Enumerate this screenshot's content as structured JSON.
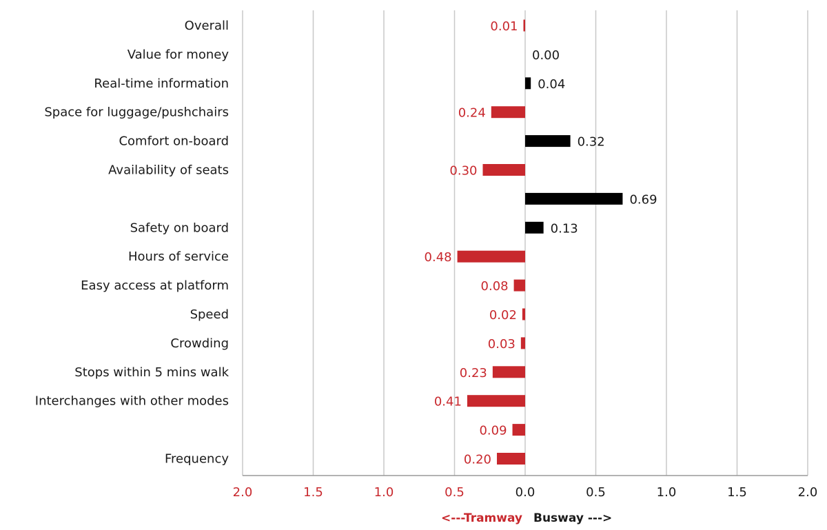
{
  "chart_data": {
    "type": "bar",
    "orientation": "horizontal",
    "categories": [
      "Overall",
      "Value for money",
      "Real-time information",
      "Space for luggage/pushchairs",
      "Comfort on-board",
      "Availability of seats",
      "",
      "Safety on board",
      "Hours of service",
      "Easy access at platform",
      "Speed",
      "Crowding",
      "Stops within 5 mins walk",
      "Interchanges with other modes",
      "",
      "Frequency"
    ],
    "values": [
      -0.01,
      0.0,
      0.04,
      -0.24,
      0.32,
      -0.3,
      0.69,
      0.13,
      -0.48,
      -0.08,
      -0.02,
      -0.03,
      -0.23,
      -0.41,
      -0.09,
      -0.2
    ],
    "value_labels": [
      "0.01",
      "0.00",
      "0.04",
      "0.24",
      "0.32",
      "0.30",
      "0.69",
      "0.13",
      "0.48",
      "0.08",
      "0.02",
      "0.03",
      "0.23",
      "0.41",
      "0.09",
      "0.20"
    ],
    "xlim": [
      -2.0,
      2.0
    ],
    "x_ticks": [
      -2.0,
      -1.5,
      -1.0,
      -0.5,
      0.0,
      0.5,
      1.0,
      1.5,
      2.0
    ],
    "x_tick_labels": [
      "2.0",
      "1.5",
      "1.0",
      "0.5",
      "0.0",
      "0.5",
      "1.0",
      "1.5",
      "2.0"
    ],
    "grid": true,
    "direction_labels": {
      "negative": "<---Tramway",
      "positive": "Busway --->"
    },
    "colors": {
      "negative": "#c8282d",
      "positive": "#000000",
      "grid": "#c8c8c8",
      "axis": "#999999",
      "category_text": "#1a1a1a"
    }
  }
}
